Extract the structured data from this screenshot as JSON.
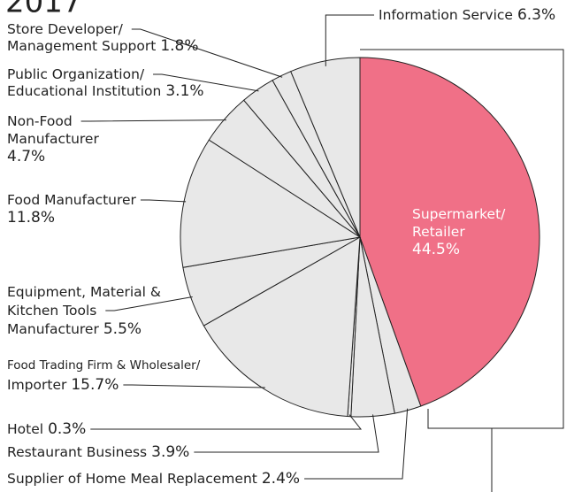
{
  "chart_data": {
    "type": "pie",
    "title": "2017",
    "categories": [
      "Supermarket/\nRetailer",
      "Supplier of Home Meal Replacement",
      "Restaurant Business",
      "Hotel",
      "Food Trading Firm & Wholesaler/\nImporter",
      "Equipment, Material &\nKitchen Tools\nManufacturer",
      "Food Manufacturer",
      "Non-Food\nManufacturer",
      "Public Organization/\nEducational Institution",
      "Store Developer/\nManagement Support",
      "Information Service"
    ],
    "values": [
      44.5,
      2.4,
      3.9,
      0.3,
      15.7,
      5.5,
      11.8,
      4.7,
      3.1,
      1.8,
      6.3
    ],
    "value_labels": [
      "44.5%",
      "2.4%",
      "3.9%",
      "0.3%",
      "15.7%",
      "5.5%",
      "11.8%",
      "4.7%",
      "3.1%",
      "1.8%",
      "6.3%"
    ],
    "colors": [
      "#f07087",
      "#e8e8e8",
      "#e8e8e8",
      "#e8e8e8",
      "#e8e8e8",
      "#e8e8e8",
      "#e8e8e8",
      "#e8e8e8",
      "#e8e8e8",
      "#e8e8e8",
      "#e8e8e8"
    ]
  }
}
